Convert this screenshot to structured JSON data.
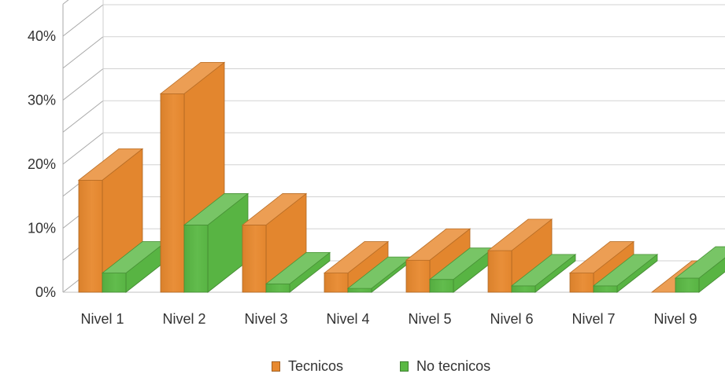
{
  "chart_data": {
    "type": "bar",
    "categories": [
      "Nivel 1",
      "Nivel 2",
      "Nivel 3",
      "Nivel 4",
      "Nivel 5",
      "Nivel 6",
      "Nivel 7",
      "Nivel 9"
    ],
    "series": [
      {
        "name": "Tecnicos",
        "values": [
          17.5,
          31,
          10.5,
          3,
          5,
          6.5,
          3,
          0
        ],
        "color": "#e8892f"
      },
      {
        "name": "No tecnicos",
        "values": [
          3,
          10.5,
          1.3,
          0.6,
          2,
          1,
          1,
          2.2
        ],
        "color": "#5ab844"
      }
    ],
    "yticks": [
      "0%",
      "10%",
      "20%",
      "30%",
      "40%"
    ],
    "ylim": [
      0,
      45
    ],
    "title": "",
    "xlabel": "",
    "ylabel": "",
    "grid": true,
    "legend_position": "bottom-center"
  }
}
